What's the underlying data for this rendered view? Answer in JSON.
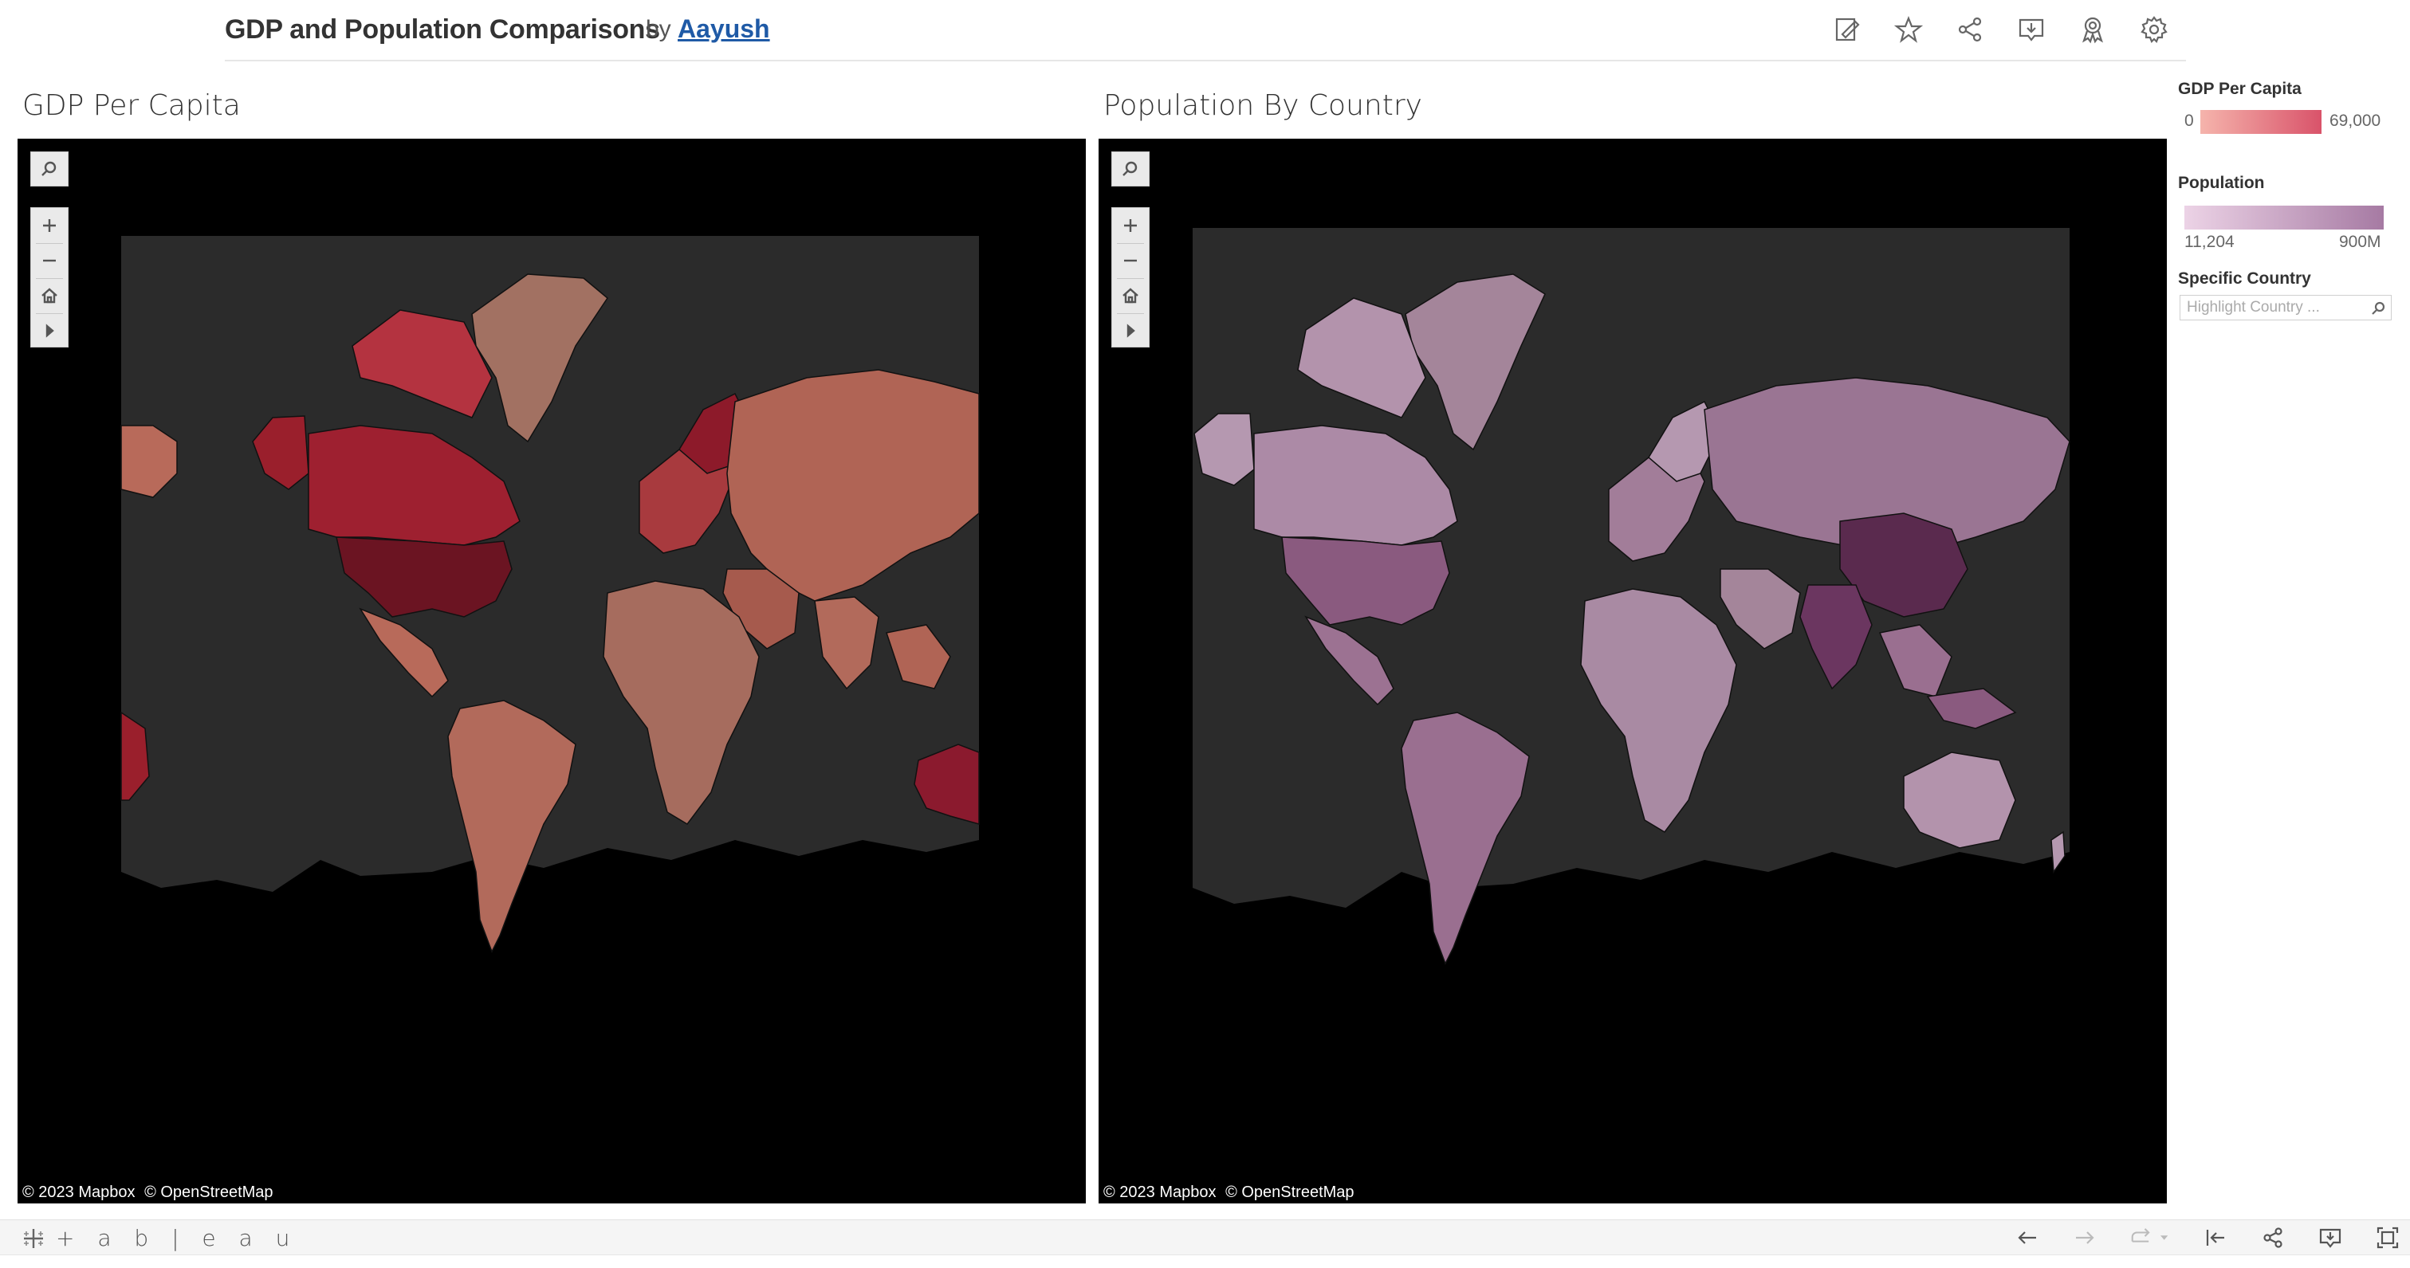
{
  "header": {
    "title": "GDP and Population Comparisons",
    "by": "by",
    "author": "Aayush",
    "icons": [
      "edit-icon",
      "star-icon",
      "share-icon",
      "download-icon",
      "metrics-icon",
      "settings-icon"
    ]
  },
  "panels": [
    {
      "title": "GDP Per Capita",
      "attribution": [
        "© 2023 Mapbox",
        "© OpenStreetMap"
      ],
      "colors": {
        "background": "#2b2b2b",
        "low": "#c27464",
        "high": "#8b1a2e"
      }
    },
    {
      "title": "Population By Country",
      "attribution": [
        "© 2023 Mapbox",
        "© OpenStreetMap"
      ],
      "colors": {
        "background": "#2b2b2b",
        "low": "#c9a3bf",
        "high": "#5a2a4e"
      }
    }
  ],
  "legends": {
    "gdp": {
      "title": "GDP Per Capita",
      "min": "0",
      "max": "69,000",
      "color_low": "#f5b4ac",
      "color_high": "#d9536a"
    },
    "population": {
      "title": "Population",
      "min": "11,204",
      "max": "900M",
      "color_low": "#ecd3e6",
      "color_high": "#a67aa3"
    },
    "filter": {
      "title": "Specific Country",
      "placeholder": "Highlight Country ..."
    }
  },
  "footer": {
    "logo": "+ a b | e a u",
    "icons": [
      "undo-icon",
      "redo-icon",
      "revert-icon",
      "reset-icon",
      "share-icon",
      "download-icon",
      "fullscreen-icon"
    ]
  }
}
